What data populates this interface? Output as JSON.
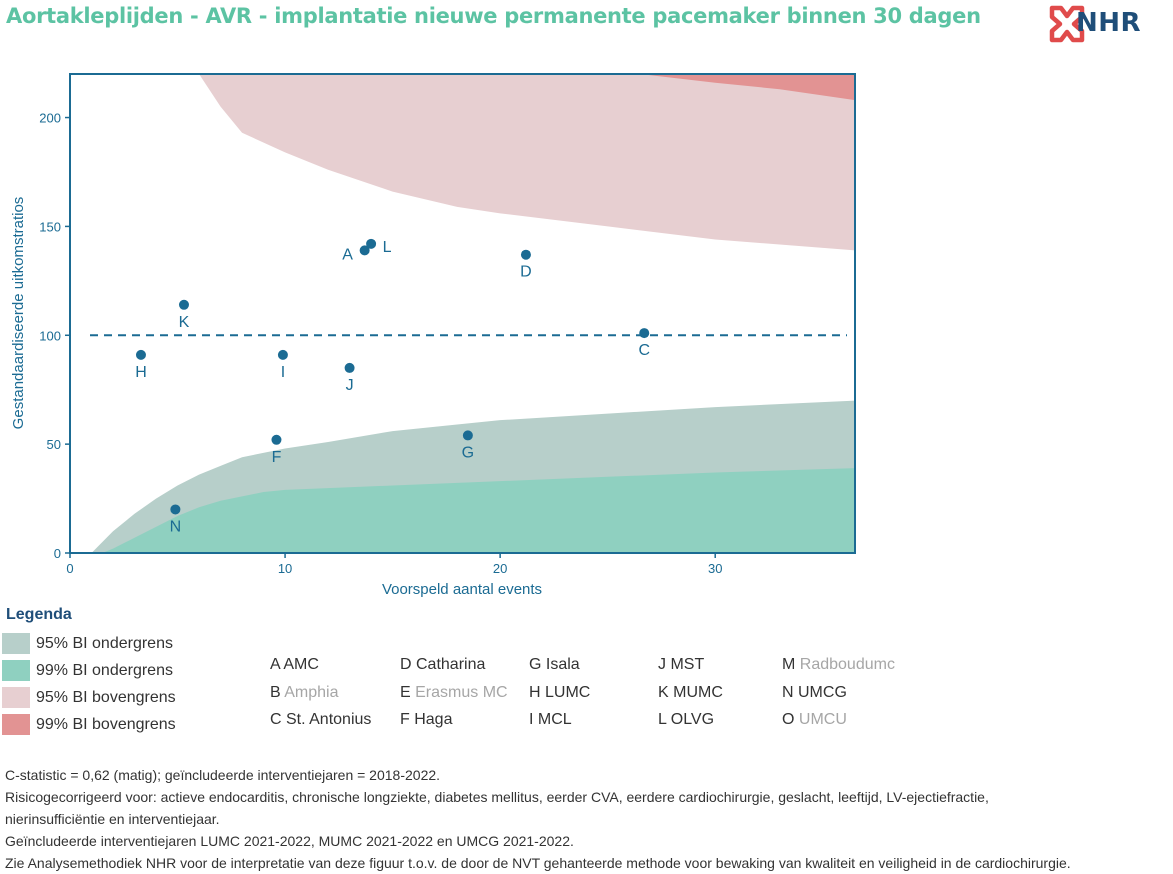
{
  "header": {
    "title": "Aortakleplijden - AVR - implantatie nieuwe permanente pacemaker binnen 30 dagen",
    "logo_text": "NHR"
  },
  "chart_data": {
    "type": "scatter",
    "title": "",
    "xlabel": "Voorspeld aantal events",
    "ylabel": "Gestandaardiseerde uitkomstratios",
    "xlim": [
      0,
      36.5
    ],
    "ylim": [
      0,
      220
    ],
    "xticks": [
      0,
      10,
      20,
      30
    ],
    "yticks": [
      0,
      50,
      100,
      150,
      200
    ],
    "reference_line": 100,
    "grid": false,
    "points": [
      {
        "label": "A",
        "x": 13.7,
        "y": 139
      },
      {
        "label": "L",
        "x": 14.0,
        "y": 142
      },
      {
        "label": "D",
        "x": 21.2,
        "y": 137
      },
      {
        "label": "K",
        "x": 5.3,
        "y": 114
      },
      {
        "label": "C",
        "x": 26.7,
        "y": 101
      },
      {
        "label": "H",
        "x": 3.3,
        "y": 91
      },
      {
        "label": "I",
        "x": 9.9,
        "y": 91
      },
      {
        "label": "J",
        "x": 13.0,
        "y": 85
      },
      {
        "label": "F",
        "x": 9.6,
        "y": 52
      },
      {
        "label": "G",
        "x": 18.5,
        "y": 54
      },
      {
        "label": "N",
        "x": 4.9,
        "y": 20
      }
    ],
    "bands": {
      "lower95": [
        [
          1.0,
          0
        ],
        [
          1.5,
          5
        ],
        [
          2,
          10
        ],
        [
          3,
          18
        ],
        [
          4,
          25
        ],
        [
          5,
          31
        ],
        [
          6,
          36
        ],
        [
          7,
          40
        ],
        [
          8,
          44
        ],
        [
          10,
          48
        ],
        [
          12,
          51
        ],
        [
          15,
          56
        ],
        [
          18,
          59
        ],
        [
          20,
          61
        ],
        [
          25,
          64
        ],
        [
          30,
          67
        ],
        [
          36.5,
          70
        ]
      ],
      "lower99": [
        [
          1.5,
          0
        ],
        [
          2,
          2
        ],
        [
          3,
          7
        ],
        [
          4,
          12
        ],
        [
          5,
          17
        ],
        [
          6,
          21
        ],
        [
          7,
          24
        ],
        [
          8,
          26
        ],
        [
          9,
          28
        ],
        [
          10,
          29
        ],
        [
          15,
          31
        ],
        [
          20,
          33
        ],
        [
          25,
          35
        ],
        [
          30,
          37
        ],
        [
          36.5,
          39
        ]
      ],
      "upper95": [
        [
          6,
          220
        ],
        [
          7,
          205
        ],
        [
          8,
          193
        ],
        [
          10,
          184
        ],
        [
          12,
          176
        ],
        [
          15,
          166
        ],
        [
          18,
          159
        ],
        [
          20,
          156
        ],
        [
          25,
          150
        ],
        [
          30,
          144
        ],
        [
          36.5,
          139
        ]
      ],
      "upper99": [
        [
          26.5,
          220
        ],
        [
          30,
          216
        ],
        [
          33,
          213
        ],
        [
          36.5,
          208
        ]
      ]
    }
  },
  "legend": {
    "title": "Legenda",
    "items": [
      {
        "label": "95% BI ondergrens",
        "color": "#b7cfca"
      },
      {
        "label": "99% BI ondergrens",
        "color": "#8fd0c0"
      },
      {
        "label": "95% BI bovengrens",
        "color": "#e7cfd1"
      },
      {
        "label": "99% BI bovengrens",
        "color": "#e29393"
      }
    ]
  },
  "hospitals": [
    {
      "code": "A",
      "name": "AMC",
      "active": true
    },
    {
      "code": "B",
      "name": "Amphia",
      "active": false
    },
    {
      "code": "C",
      "name": "St. Antonius",
      "active": true
    },
    {
      "code": "D",
      "name": "Catharina",
      "active": true
    },
    {
      "code": "E",
      "name": "Erasmus MC",
      "active": false
    },
    {
      "code": "F",
      "name": "Haga",
      "active": true
    },
    {
      "code": "G",
      "name": "Isala",
      "active": true
    },
    {
      "code": "H",
      "name": "LUMC",
      "active": true
    },
    {
      "code": "I",
      "name": "MCL",
      "active": true
    },
    {
      "code": "J",
      "name": "MST",
      "active": true
    },
    {
      "code": "K",
      "name": "MUMC",
      "active": true
    },
    {
      "code": "L",
      "name": "OLVG",
      "active": true
    },
    {
      "code": "M",
      "name": "Radboudumc",
      "active": false
    },
    {
      "code": "N",
      "name": "UMCG",
      "active": true
    },
    {
      "code": "O",
      "name": "UMCU",
      "active": false
    }
  ],
  "notes": [
    "C-statistic =  0,62 (matig); geïncludeerde interventiejaren = 2018-2022.",
    "Risicogecorrigeerd voor: actieve endocarditis, chronische longziekte, diabetes mellitus, eerder CVA, eerdere cardiochirurgie, geslacht, leeftijd, LV-ejectiefractie,",
    "nierinsufficiëntie en interventiejaar.",
    "Geïncludeerde interventiejaren LUMC 2021-2022, MUMC 2021-2022 en UMCG 2021-2022.",
    "Zie Analysemethodiek NHR voor de interpretatie van deze figuur t.o.v. de door de NVT gehanteerde methode voor bewaking van kwaliteit en veiligheid in de cardiochirurgie."
  ],
  "colors": {
    "accent": "#5cc3a3",
    "axis": "#1b6b93",
    "point": "#1b6b93",
    "logo_red": "#e04b4b",
    "logo_blue": "#1f4e79"
  }
}
